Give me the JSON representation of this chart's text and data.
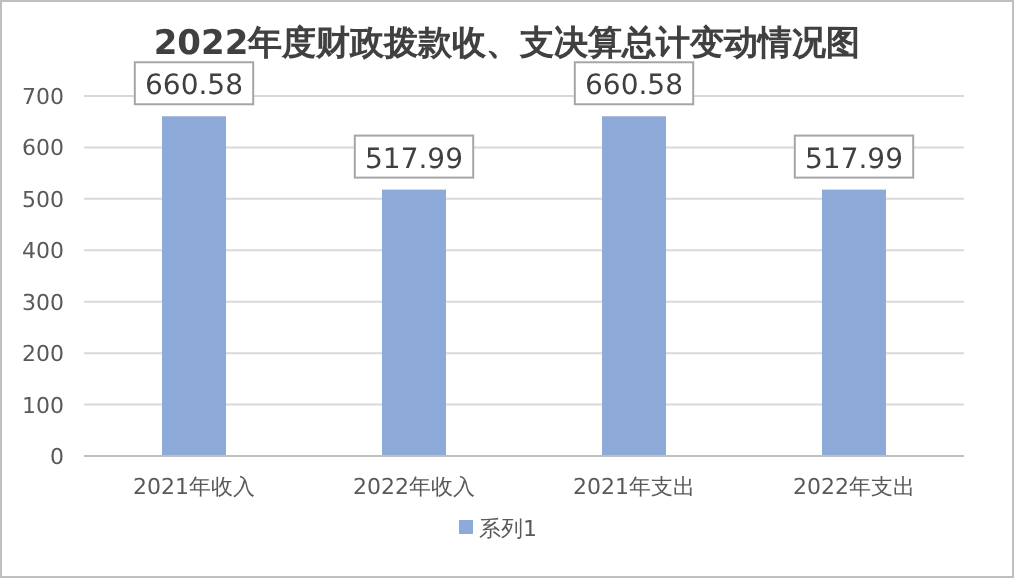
{
  "chart_data": {
    "type": "bar",
    "title": "2022年度财政拨款收、支决算总计变动情况图",
    "categories": [
      "2021年收入",
      "2022年收入",
      "2021年支出",
      "2022年支出"
    ],
    "series": [
      {
        "name": "系列1",
        "color": "#8eaad8",
        "values": [
          660.58,
          517.99,
          660.58,
          517.99
        ]
      }
    ],
    "ylim": [
      0,
      700
    ],
    "yticks": [
      0,
      100,
      200,
      300,
      400,
      500,
      600,
      700
    ],
    "grid": "y",
    "legend": "bottom",
    "data_labels": true
  }
}
